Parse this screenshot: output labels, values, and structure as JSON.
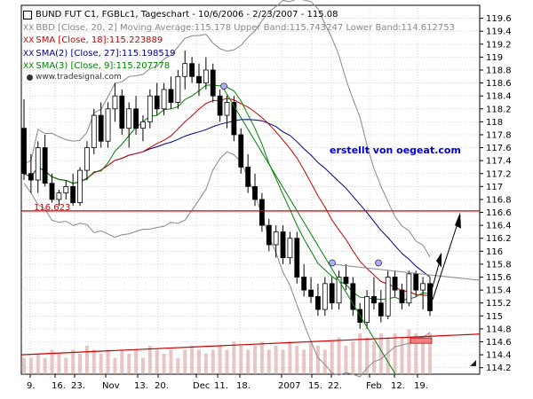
{
  "header": {
    "title": "BUND FUT C1, FGBLc1, Tagesch art - 10/6/2006 - 2/23/2007 - 115.08",
    "title_raw": "BUND FUT C1, FGBLc1, Tageschart - 10/6/2006 - 2/23/2007 - 115.08",
    "watermark": "www.tradesignal.com"
  },
  "legend": [
    {
      "marker": "XX",
      "text": "BBD [Close, 20, 2] Moving Average:115.178 Upper Band:115.743247 Lower Band:114.612753",
      "color": "#888888"
    },
    {
      "marker": "XX",
      "text": "SMA [Close, 18]:115.223889",
      "color": "#cc0000"
    },
    {
      "marker": "XX",
      "text": "SMA(2) [Close, 27]:115.198519",
      "color": "#000080"
    },
    {
      "marker": "XX",
      "text": "SMA(3) [Close, 9]:115.207778",
      "color": "#008000"
    }
  ],
  "annotation": {
    "text": "erstellt von oegeat.com",
    "color": "#0000cc"
  },
  "level_label": "116.623",
  "colors": {
    "candle_up": "#ffffff",
    "candle_down": "#000000",
    "sma18": "#cc0000",
    "sma27": "#000080",
    "sma9": "#008000",
    "band": "#888888",
    "horizontal_level": "#cc0000",
    "volume": "#d8a0a0"
  },
  "chart_data": {
    "type": "candlestick",
    "ylim": [
      114.1,
      119.8
    ],
    "y_ticks": [
      "119.6",
      "119.4",
      "119.2",
      "119",
      "118.8",
      "118.6",
      "118.4",
      "118.2",
      "118",
      "117.8",
      "117.6",
      "117.4",
      "117.2",
      "117",
      "116.8",
      "116.6",
      "116.4",
      "116.2",
      "116",
      "115.8",
      "115.6",
      "115.4",
      "115.2",
      "115",
      "114.8",
      "114.6",
      "114.4",
      "114.2"
    ],
    "x_labels": [
      "9.",
      "16.",
      "23.",
      "Nov",
      "13.",
      "20.",
      "Dec",
      "11.",
      "18.",
      "2007",
      "15.",
      "22.",
      "Feb",
      "12.",
      "19."
    ],
    "horizontal_line": 116.623,
    "grid": true,
    "ohlc": [
      [
        117.9,
        118.35,
        117.1,
        117.2
      ],
      [
        117.2,
        117.5,
        116.9,
        117.1
      ],
      [
        117.1,
        117.7,
        116.9,
        117.6
      ],
      [
        117.6,
        117.8,
        117.0,
        117.05
      ],
      [
        117.05,
        117.2,
        116.75,
        116.8
      ],
      [
        116.8,
        116.95,
        116.7,
        116.9
      ],
      [
        116.9,
        117.1,
        116.8,
        117.0
      ],
      [
        117.0,
        117.2,
        116.7,
        116.75
      ],
      [
        116.75,
        117.3,
        116.7,
        117.25
      ],
      [
        117.25,
        117.7,
        117.1,
        117.6
      ],
      [
        117.6,
        118.2,
        117.5,
        118.1
      ],
      [
        118.1,
        118.3,
        117.6,
        117.7
      ],
      [
        117.7,
        118.3,
        117.6,
        118.2
      ],
      [
        118.2,
        118.6,
        118.0,
        118.4
      ],
      [
        118.4,
        118.5,
        117.8,
        117.9
      ],
      [
        117.9,
        118.3,
        117.6,
        118.2
      ],
      [
        118.2,
        118.4,
        117.8,
        117.9
      ],
      [
        117.9,
        118.1,
        117.7,
        118.0
      ],
      [
        118.0,
        118.5,
        117.9,
        118.4
      ],
      [
        118.4,
        118.6,
        118.1,
        118.2
      ],
      [
        118.2,
        118.6,
        118.1,
        118.5
      ],
      [
        118.5,
        118.7,
        118.2,
        118.3
      ],
      [
        118.3,
        118.8,
        118.2,
        118.7
      ],
      [
        118.7,
        119.1,
        118.5,
        118.9
      ],
      [
        118.9,
        119.0,
        118.6,
        118.7
      ],
      [
        118.7,
        118.9,
        118.4,
        118.6
      ],
      [
        118.6,
        119.0,
        118.5,
        118.8
      ],
      [
        118.8,
        118.9,
        118.3,
        118.4
      ],
      [
        118.4,
        118.5,
        118.0,
        118.1
      ],
      [
        118.1,
        118.4,
        117.9,
        118.3
      ],
      [
        118.3,
        118.4,
        117.7,
        117.8
      ],
      [
        117.8,
        117.9,
        117.2,
        117.3
      ],
      [
        117.3,
        117.5,
        116.9,
        117.0
      ],
      [
        117.0,
        117.2,
        116.7,
        116.8
      ],
      [
        116.8,
        116.9,
        116.3,
        116.4
      ],
      [
        116.4,
        116.5,
        116.0,
        116.1
      ],
      [
        116.1,
        116.4,
        115.9,
        116.3
      ],
      [
        116.3,
        116.4,
        115.8,
        115.9
      ],
      [
        115.9,
        116.3,
        115.8,
        116.2
      ],
      [
        116.2,
        116.3,
        115.5,
        115.6
      ],
      [
        115.6,
        115.8,
        115.3,
        115.4
      ],
      [
        115.4,
        115.6,
        115.2,
        115.3
      ],
      [
        115.3,
        115.5,
        115.0,
        115.1
      ],
      [
        115.1,
        115.6,
        115.0,
        115.5
      ],
      [
        115.5,
        115.6,
        115.1,
        115.2
      ],
      [
        115.2,
        115.7,
        115.1,
        115.6
      ],
      [
        115.6,
        115.8,
        115.4,
        115.5
      ],
      [
        115.5,
        115.6,
        115.0,
        115.1
      ],
      [
        115.1,
        115.2,
        114.8,
        114.9
      ],
      [
        114.9,
        115.4,
        114.8,
        115.3
      ],
      [
        115.3,
        115.6,
        115.1,
        115.2
      ],
      [
        115.2,
        115.4,
        114.9,
        115.0
      ],
      [
        115.0,
        115.7,
        114.95,
        115.6
      ],
      [
        115.6,
        115.7,
        115.3,
        115.4
      ],
      [
        115.4,
        115.5,
        115.1,
        115.2
      ],
      [
        115.2,
        115.7,
        115.15,
        115.65
      ],
      [
        115.65,
        115.7,
        115.3,
        115.4
      ],
      [
        115.4,
        115.6,
        115.1,
        115.5
      ],
      [
        115.5,
        115.6,
        115.0,
        115.08
      ]
    ],
    "volume": [
      0.2,
      0.2,
      0.25,
      0.2,
      0.3,
      0.25,
      0.2,
      0.3,
      0.25,
      0.35,
      0.3,
      0.25,
      0.3,
      0.2,
      0.3,
      0.25,
      0.3,
      0.2,
      0.35,
      0.3,
      0.25,
      0.3,
      0.2,
      0.3,
      0.35,
      0.3,
      0.25,
      0.3,
      0.35,
      0.3,
      0.4,
      0.35,
      0.3,
      0.35,
      0.4,
      0.3,
      0.35,
      0.3,
      0.4,
      0.35,
      0.3,
      0.4,
      0.35,
      0.3,
      0.4,
      0.45,
      0.35,
      0.4,
      0.5,
      0.45,
      0.4,
      0.5,
      0.45,
      0.5,
      0.45,
      0.55,
      0.5,
      0.45,
      0.5
    ]
  }
}
